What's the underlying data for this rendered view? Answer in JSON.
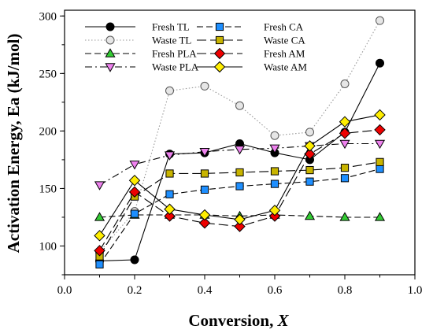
{
  "chart_data": {
    "type": "line",
    "xlabel": "Conversion, ",
    "xlabel_var": "X",
    "ylabel": "Activation Energy, Ea (kJ/mol)",
    "xlim": [
      0.0,
      1.0
    ],
    "ylim": [
      75,
      305
    ],
    "x_ticks": [
      0.0,
      0.2,
      0.4,
      0.6,
      0.8,
      1.0
    ],
    "x_tick_labels": [
      "0.0",
      "0.2",
      "0.4",
      "0.6",
      "0.8",
      "1.0"
    ],
    "y_ticks": [
      100,
      150,
      200,
      250,
      300
    ],
    "y_tick_labels": [
      "100",
      "150",
      "200",
      "250",
      "300"
    ],
    "grid": false,
    "legend_position": "top-left",
    "x": [
      0.1,
      0.2,
      0.3,
      0.4,
      0.5,
      0.6,
      0.7,
      0.8,
      0.9
    ],
    "series": [
      {
        "name": "Fresh TL",
        "values": [
          87,
          88,
          180,
          181,
          189,
          181,
          175,
          199,
          259
        ],
        "color": "#000000",
        "marker": "circle",
        "fill": "#000000",
        "dash": "solid"
      },
      {
        "name": "Waste TL",
        "values": [
          95,
          130,
          235,
          239,
          222,
          196,
          199,
          241,
          296
        ],
        "color": "#999999",
        "marker": "circle",
        "fill": "#e6e6e6",
        "dash": "dotted"
      },
      {
        "name": "Fresh PLA",
        "values": [
          125,
          127,
          127,
          127,
          126,
          127,
          126,
          125,
          125
        ],
        "color": "#000000",
        "marker": "triangle-up",
        "fill": "#33cc33",
        "dash": "dashed"
      },
      {
        "name": "Waste PLA",
        "values": [
          153,
          171,
          179,
          182,
          184,
          185,
          187,
          189,
          189
        ],
        "color": "#000000",
        "marker": "triangle-down",
        "fill": "#ee82ee",
        "dash": "dashdot"
      },
      {
        "name": "Fresh CA",
        "values": [
          84,
          128,
          145,
          149,
          152,
          154,
          156,
          159,
          167
        ],
        "color": "#000000",
        "marker": "square",
        "fill": "#1e8fff",
        "dash": "dashed"
      },
      {
        "name": "Waste CA",
        "values": [
          91,
          143,
          163,
          163,
          164,
          165,
          166,
          168,
          173
        ],
        "color": "#000000",
        "marker": "square",
        "fill": "#c8b400",
        "dash": "longdash"
      },
      {
        "name": "Fresh AM",
        "values": [
          96,
          147,
          126,
          120,
          117,
          126,
          180,
          198,
          201
        ],
        "color": "#000000",
        "marker": "diamond",
        "fill": "#ee0000",
        "dash": "longdash"
      },
      {
        "name": "Waste AM",
        "values": [
          109,
          157,
          132,
          127,
          123,
          131,
          187,
          208,
          214
        ],
        "color": "#000000",
        "marker": "diamond",
        "fill": "#ffee00",
        "dash": "solid"
      }
    ]
  }
}
